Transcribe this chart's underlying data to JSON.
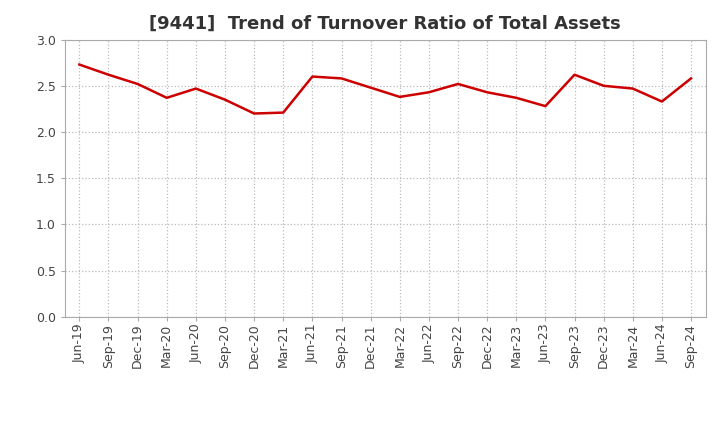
{
  "title": "[9441]  Trend of Turnover Ratio of Total Assets",
  "labels": [
    "Jun-19",
    "Sep-19",
    "Dec-19",
    "Mar-20",
    "Jun-20",
    "Sep-20",
    "Dec-20",
    "Mar-21",
    "Jun-21",
    "Sep-21",
    "Dec-21",
    "Mar-22",
    "Jun-22",
    "Sep-22",
    "Dec-22",
    "Mar-23",
    "Jun-23",
    "Sep-23",
    "Dec-23",
    "Mar-24",
    "Jun-24",
    "Sep-24"
  ],
  "values": [
    2.73,
    2.62,
    2.52,
    2.37,
    2.47,
    2.35,
    2.2,
    2.21,
    2.6,
    2.58,
    2.48,
    2.38,
    2.43,
    2.52,
    2.43,
    2.37,
    2.28,
    2.62,
    2.5,
    2.47,
    2.33,
    2.58
  ],
  "line_color": "#cc0000",
  "line_width": 1.8,
  "ylim": [
    0.0,
    3.0
  ],
  "yticks": [
    0.0,
    0.5,
    1.0,
    1.5,
    2.0,
    2.5,
    3.0
  ],
  "grid_color": "#bbbbbb",
  "background_color": "#ffffff",
  "title_fontsize": 13,
  "title_color": "#333333",
  "tick_fontsize": 9,
  "tick_color": "#444444"
}
